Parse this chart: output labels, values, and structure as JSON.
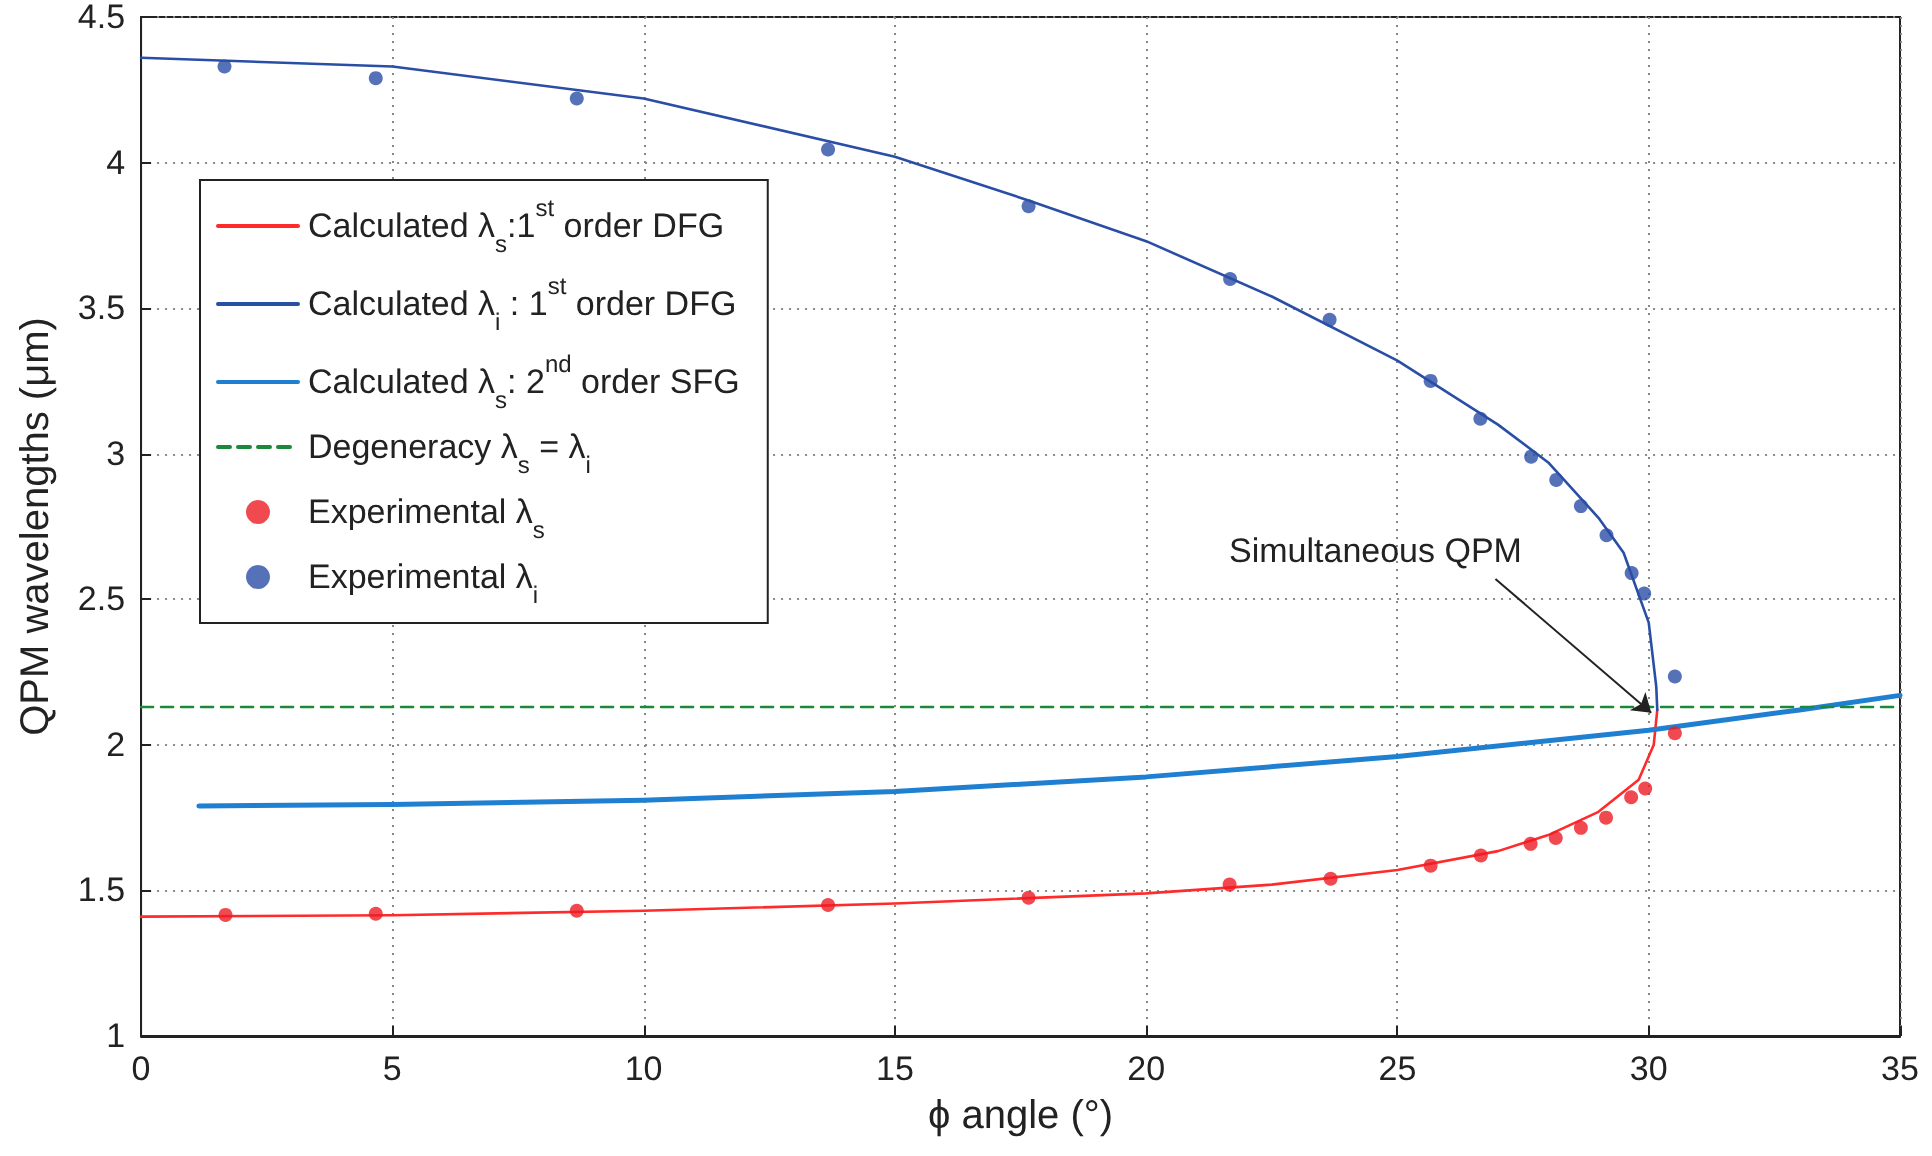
{
  "chart_data": {
    "type": "line",
    "xlabel": "ϕ angle (°)",
    "ylabel": "QPM wavelengths (μm)",
    "xlim": [
      0,
      35
    ],
    "xticks": [
      0,
      5,
      10,
      15,
      20,
      25,
      30,
      35
    ],
    "ylim": [
      1,
      4.5
    ],
    "yticks": [
      1,
      1.5,
      2,
      2.5,
      3,
      3.5,
      4,
      4.5
    ],
    "grid": true,
    "legend": "top left",
    "annotations": [
      {
        "text": "Simultaneous QPM",
        "x": 30.05,
        "y": 2.11
      }
    ],
    "series": [
      {
        "name": "Calculated λ$_{s}$:1$^{st}$ order DFG",
        "color": "#ff2a2a",
        "line_style": "solid",
        "marker": "none",
        "x": [
          30.17,
          30.1,
          29.8,
          29,
          28,
          27,
          25,
          22.5,
          20,
          15,
          10,
          5,
          0
        ],
        "values": [
          2.12,
          2.0,
          1.88,
          1.77,
          1.69,
          1.635,
          1.57,
          1.52,
          1.49,
          1.455,
          1.43,
          1.415,
          1.41
        ]
      },
      {
        "name": "Calculated λ$_{i}$ : 1$^{st}$ order DFG",
        "color": "#2a4ea6",
        "line_style": "solid",
        "marker": "none",
        "x": [
          0,
          5,
          10,
          15,
          17.66,
          20,
          22.5,
          25,
          27,
          28,
          29,
          29.5,
          30,
          30.15,
          30.17
        ],
        "values": [
          4.36,
          4.33,
          4.22,
          4.02,
          3.87,
          3.73,
          3.54,
          3.32,
          3.1,
          2.97,
          2.78,
          2.66,
          2.42,
          2.2,
          2.12
        ]
      },
      {
        "name": "Calculated λ$_{s}$: 2$^{nd}$ order SFG",
        "color": "#1f7fd0",
        "line_style": "solid",
        "marker": "none",
        "x": [
          1.15,
          5,
          10,
          15,
          20,
          25,
          30,
          33,
          35
        ],
        "values": [
          1.79,
          1.795,
          1.81,
          1.84,
          1.89,
          1.96,
          2.05,
          2.12,
          2.17
        ]
      },
      {
        "name": "Degeneracy λ$_{s}$ = λ$_{i}$",
        "color": "#1a8a3a",
        "line_style": "dashed",
        "marker": "none",
        "x": [
          0,
          35
        ],
        "values": [
          2.13,
          2.13
        ]
      },
      {
        "name": "Experimental λ$_{s}$",
        "type": "scatter",
        "color": "#ee1c24",
        "marker": "circle",
        "x": [
          1.68,
          4.67,
          8.67,
          13.67,
          17.66,
          21.66,
          23.67,
          25.66,
          26.66,
          27.65,
          28.15,
          28.65,
          29.15,
          29.65,
          29.93,
          30.52
        ],
        "values": [
          1.416,
          1.42,
          1.43,
          1.45,
          1.475,
          1.52,
          1.54,
          1.585,
          1.62,
          1.66,
          1.68,
          1.715,
          1.75,
          1.82,
          1.85,
          2.04
        ]
      },
      {
        "name": "Experimental λ$_{i}$",
        "type": "scatter",
        "color": "#2a4ea6",
        "marker": "circle",
        "x": [
          1.66,
          4.67,
          8.67,
          13.67,
          17.66,
          21.67,
          23.65,
          25.66,
          26.65,
          27.66,
          28.16,
          28.65,
          29.16,
          29.66,
          29.91,
          30.52
        ],
        "values": [
          4.33,
          4.29,
          4.22,
          4.045,
          3.85,
          3.6,
          3.46,
          3.25,
          3.12,
          2.99,
          2.91,
          2.82,
          2.72,
          2.59,
          2.52,
          2.235
        ]
      }
    ]
  }
}
